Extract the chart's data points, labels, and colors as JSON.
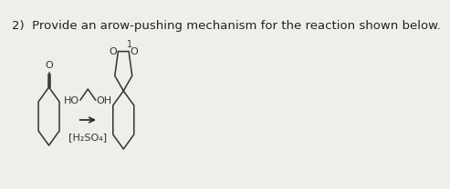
{
  "title_text": "2)  Provide an arow-pushing mechanism for the reaction shown below.",
  "title_fontsize": 9.5,
  "bg_color": "#f0eeeb",
  "text_color": "#222222",
  "reagent_text": "[H₂SO₄]",
  "ho_text": "HO",
  "oh_text": "OH",
  "number_label": "1",
  "arrow_color": "#222222",
  "line_color": "#333333",
  "line_width": 1.1,
  "o_fontsize": 8.0,
  "label_fontsize": 8.0
}
